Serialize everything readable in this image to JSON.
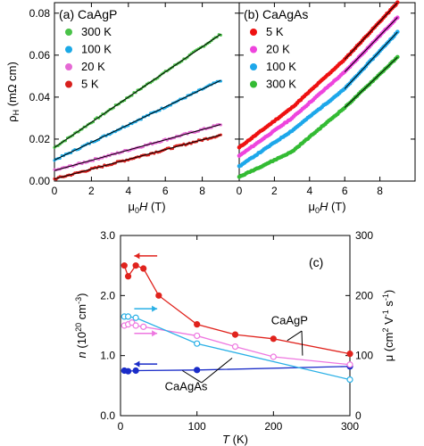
{
  "chart_data": [
    {
      "type": "scatter",
      "panel_label": "(a) CaAgP",
      "xlabel_parts": [
        "μ",
        "0",
        "H",
        " (T)"
      ],
      "ylabel_parts": [
        "ρ",
        "H",
        " (mΩ cm)"
      ],
      "xlim": [
        0,
        10
      ],
      "ylim": [
        0,
        0.085
      ],
      "xticks": [
        "0",
        "2",
        "4",
        "6",
        "8"
      ],
      "yticks": [
        "0.00",
        "0.02",
        "0.04",
        "0.06",
        "0.08"
      ],
      "legend": "top-left",
      "series": [
        {
          "name": "300 K",
          "color": "#49c248",
          "fit": [
            [
              0,
              0.016
            ],
            [
              9,
              0.07
            ]
          ]
        },
        {
          "name": "100 K",
          "color": "#1ba9e6",
          "fit": [
            [
              0,
              0.01
            ],
            [
              9,
              0.048
            ]
          ]
        },
        {
          "name": "20 K",
          "color": "#e569d4",
          "fit": [
            [
              0,
              0.005
            ],
            [
              9,
              0.027
            ]
          ]
        },
        {
          "name": "5 K",
          "color": "#d8201d",
          "fit": [
            [
              0,
              0.001
            ],
            [
              9,
              0.022
            ]
          ]
        }
      ]
    },
    {
      "type": "scatter",
      "panel_label": "(b) CaAgAs",
      "xlabel_parts": [
        "μ",
        "0",
        "H",
        " (T)"
      ],
      "xlim": [
        0,
        10
      ],
      "ylim": [
        0,
        0.085
      ],
      "xticks": [
        "0",
        "2",
        "4",
        "6",
        "8"
      ],
      "legend": "top-left",
      "series": [
        {
          "name": "5 K",
          "color": "#ee1111",
          "curve": [
            [
              0,
              0.016
            ],
            [
              3,
              0.035
            ],
            [
              6,
              0.058
            ],
            [
              9,
              0.085
            ]
          ]
        },
        {
          "name": "20 K",
          "color": "#ee44dd",
          "curve": [
            [
              0,
              0.012
            ],
            [
              3,
              0.03
            ],
            [
              6,
              0.052
            ],
            [
              9,
              0.078
            ]
          ]
        },
        {
          "name": "100 K",
          "color": "#1da7ea",
          "curve": [
            [
              0,
              0.007
            ],
            [
              3,
              0.024
            ],
            [
              6,
              0.044
            ],
            [
              9,
              0.071
            ]
          ]
        },
        {
          "name": "300 K",
          "color": "#33bb33",
          "curve": [
            [
              0,
              0.002
            ],
            [
              3,
              0.014
            ],
            [
              6,
              0.035
            ],
            [
              9,
              0.059
            ]
          ]
        }
      ]
    },
    {
      "type": "line",
      "panel_label": "(c)",
      "xlabel_parts": [
        "T",
        " (K)"
      ],
      "ylabel_left_parts": [
        "n",
        " (10",
        "20",
        " cm",
        "-3",
        ")"
      ],
      "ylabel_right_parts": [
        "μ (cm",
        "2",
        " V",
        "-1",
        " s",
        "-1",
        ")"
      ],
      "xlim": [
        0,
        300
      ],
      "ylim_left": [
        0,
        3.0
      ],
      "ylim_right": [
        0,
        300
      ],
      "xticks": [
        "0",
        "100",
        "200",
        "300"
      ],
      "yticks_left": [
        "0.0",
        "1.0",
        "2.0",
        "3.0"
      ],
      "yticks_right": [
        "0",
        "100",
        "200",
        "300"
      ],
      "series": [
        {
          "name": "CaAgP n",
          "axis": "left",
          "color": "#e0231d",
          "filled": true,
          "x": [
            5,
            10,
            20,
            30,
            50,
            100,
            150,
            200,
            300
          ],
          "y": [
            2.5,
            2.32,
            2.5,
            2.45,
            2.0,
            1.52,
            1.35,
            1.28,
            1.03
          ]
        },
        {
          "name": "CaAgAs n",
          "axis": "left",
          "color": "#1a2cc8",
          "filled": true,
          "x": [
            5,
            10,
            20,
            100,
            300
          ],
          "y": [
            0.75,
            0.74,
            0.75,
            0.76,
            0.82
          ]
        },
        {
          "name": "CaAgP μ",
          "axis": "right",
          "color": "#ee77e0",
          "filled": false,
          "x": [
            5,
            10,
            15,
            20,
            30,
            100,
            150,
            200,
            300
          ],
          "y": [
            150,
            152,
            155,
            150,
            148,
            133,
            115,
            98,
            85
          ]
        },
        {
          "name": "CaAgAs μ",
          "axis": "right",
          "color": "#2ab0e6",
          "filled": false,
          "x": [
            5,
            10,
            20,
            100,
            300
          ],
          "y": [
            165,
            165,
            163,
            120,
            60
          ]
        }
      ],
      "annotations": [
        "CaAgP",
        "CaAgAs"
      ]
    }
  ]
}
